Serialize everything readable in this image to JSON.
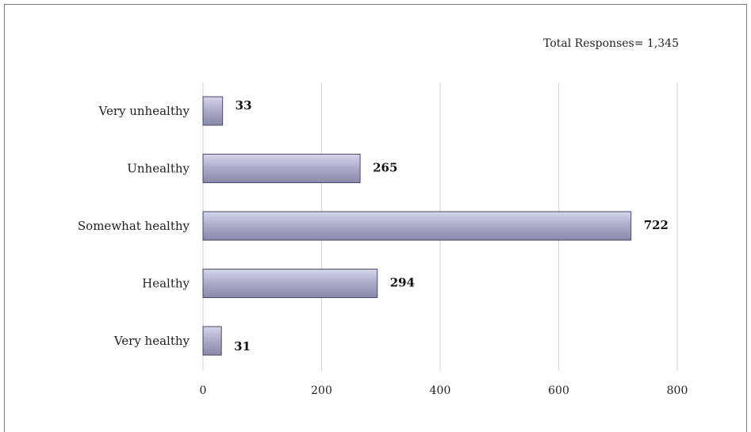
{
  "annotation": "Total Responses= 1,345",
  "colors": {
    "bar_top": "#d5d5ea",
    "bar_bottom": "#8888aa",
    "bar_stroke": "#4a4a6a",
    "grid": "#d9d9d9",
    "frame": "#7a7a7a"
  },
  "chart_data": {
    "type": "bar",
    "orientation": "horizontal",
    "categories": [
      "Very unhealthy",
      "Unhealthy",
      "Somewhat healthy",
      "Healthy",
      "Very healthy"
    ],
    "values": [
      33,
      265,
      722,
      294,
      31
    ],
    "data_labels": [
      "33",
      "265",
      "722",
      "294",
      "31"
    ],
    "x_ticks": [
      0,
      200,
      400,
      600,
      800
    ],
    "x_tick_labels": [
      "0",
      "200",
      "400",
      "600",
      "800"
    ],
    "xlim": [
      0,
      800
    ],
    "grid": "vertical",
    "legend": "none",
    "title": "",
    "xlabel": "",
    "ylabel": ""
  }
}
